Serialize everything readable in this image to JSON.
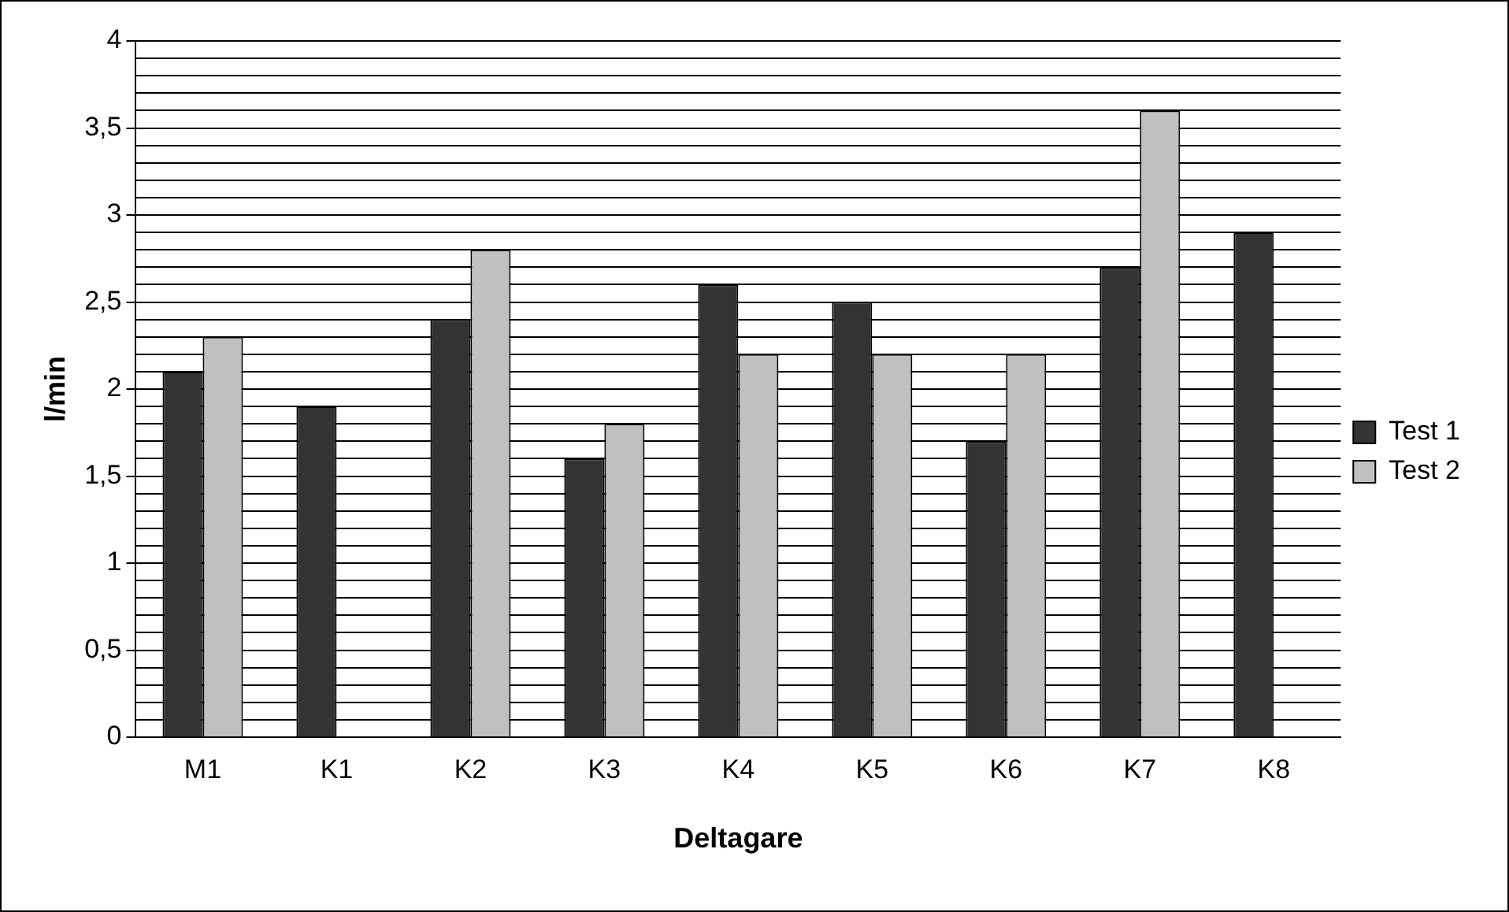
{
  "chart_data": {
    "type": "bar",
    "xlabel": "Deltagare",
    "ylabel": "l/min",
    "categories": [
      "M1",
      "K1",
      "K2",
      "K3",
      "K4",
      "K5",
      "K6",
      "K7",
      "K8"
    ],
    "series": [
      {
        "name": "Test 1",
        "color": "#333333",
        "values": [
          2.1,
          1.9,
          2.4,
          1.6,
          2.6,
          2.5,
          1.7,
          2.7,
          2.9
        ]
      },
      {
        "name": "Test 2",
        "color": "#c0c0c0",
        "values": [
          2.3,
          null,
          2.8,
          1.8,
          2.2,
          2.2,
          2.2,
          3.6,
          null
        ]
      }
    ],
    "ylim": [
      0,
      4
    ],
    "yticks": [
      {
        "value": 0,
        "label": "0"
      },
      {
        "value": 0.1,
        "label": null
      },
      {
        "value": 0.2,
        "label": null
      },
      {
        "value": 0.3,
        "label": null
      },
      {
        "value": 0.4,
        "label": null
      },
      {
        "value": 0.5,
        "label": "0,5"
      },
      {
        "value": 0.6,
        "label": null
      },
      {
        "value": 0.7,
        "label": null
      },
      {
        "value": 0.8,
        "label": null
      },
      {
        "value": 0.9,
        "label": null
      },
      {
        "value": 1,
        "label": "1"
      },
      {
        "value": 1.1,
        "label": null
      },
      {
        "value": 1.2,
        "label": null
      },
      {
        "value": 1.3,
        "label": null
      },
      {
        "value": 1.4,
        "label": null
      },
      {
        "value": 1.5,
        "label": "1,5"
      },
      {
        "value": 1.6,
        "label": null
      },
      {
        "value": 1.7,
        "label": null
      },
      {
        "value": 1.8,
        "label": null
      },
      {
        "value": 1.9,
        "label": null
      },
      {
        "value": 2,
        "label": "2"
      },
      {
        "value": 2.1,
        "label": null
      },
      {
        "value": 2.2,
        "label": null
      },
      {
        "value": 2.3,
        "label": null
      },
      {
        "value": 2.4,
        "label": null
      },
      {
        "value": 2.5,
        "label": "2,5"
      },
      {
        "value": 2.6,
        "label": null
      },
      {
        "value": 2.7,
        "label": null
      },
      {
        "value": 2.8,
        "label": null
      },
      {
        "value": 2.9,
        "label": null
      },
      {
        "value": 3,
        "label": "3"
      },
      {
        "value": 3.1,
        "label": null
      },
      {
        "value": 3.2,
        "label": null
      },
      {
        "value": 3.3,
        "label": null
      },
      {
        "value": 3.4,
        "label": null
      },
      {
        "value": 3.5,
        "label": "3,5"
      },
      {
        "value": 3.6,
        "label": null
      },
      {
        "value": 3.7,
        "label": null
      },
      {
        "value": 3.8,
        "label": null
      },
      {
        "value": 3.9,
        "label": null
      },
      {
        "value": 4,
        "label": "4"
      }
    ],
    "grid": "y",
    "legend": "right"
  }
}
